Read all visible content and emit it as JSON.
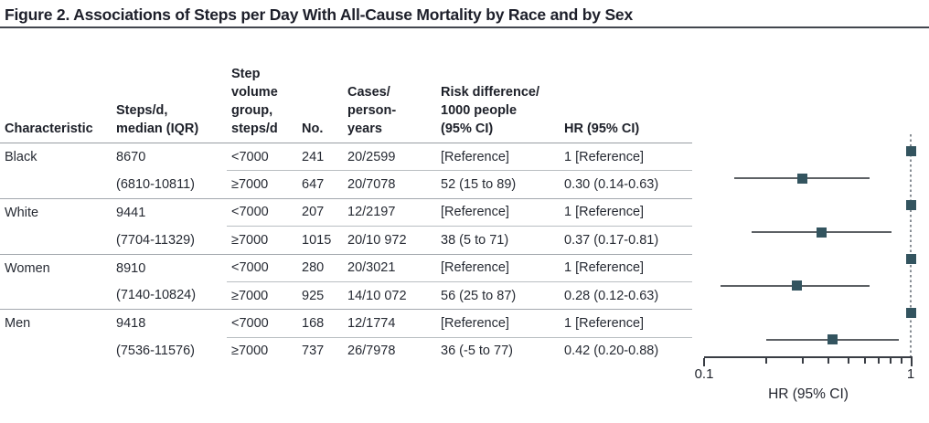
{
  "figure": {
    "title": "Figure 2. Associations of Steps per Day With All-Cause Mortality by Race and by Sex"
  },
  "table": {
    "columns": [
      {
        "id": "characteristic",
        "label": "Characteristic"
      },
      {
        "id": "steps_median",
        "label": "Steps/d,\nmedian (IQR)"
      },
      {
        "id": "volume_group",
        "label": "Step\nvolume\ngroup,\nsteps/d"
      },
      {
        "id": "no",
        "label": "No."
      },
      {
        "id": "cases",
        "label": "Cases/\nperson-\nyears"
      },
      {
        "id": "risk_difference",
        "label": "Risk difference/\n1000 people\n(95% CI)"
      },
      {
        "id": "hr",
        "label": "HR (95% CI)"
      }
    ],
    "rows": [
      {
        "characteristic": "Black",
        "steps": "8670",
        "group": "<7000",
        "no": "241",
        "cases": "20/2599",
        "risk": "[Reference]",
        "hr": "1 [Reference]"
      },
      {
        "characteristic": "",
        "steps": "(6810-10811)",
        "group": "≥7000",
        "no": "647",
        "cases": "20/7078",
        "risk": "52 (15 to 89)",
        "hr": "0.30 (0.14-0.63)"
      },
      {
        "characteristic": "White",
        "steps": "9441",
        "group": "<7000",
        "no": "207",
        "cases": "12/2197",
        "risk": "[Reference]",
        "hr": "1 [Reference]"
      },
      {
        "characteristic": "",
        "steps": "(7704-11329)",
        "group": "≥7000",
        "no": "1015",
        "cases": "20/10 972",
        "risk": "38 (5 to 71)",
        "hr": "0.37 (0.17-0.81)"
      },
      {
        "characteristic": "Women",
        "steps": "8910",
        "group": "<7000",
        "no": "280",
        "cases": "20/3021",
        "risk": "[Reference]",
        "hr": "1 [Reference]"
      },
      {
        "characteristic": "",
        "steps": "(7140-10824)",
        "group": "≥7000",
        "no": "925",
        "cases": "14/10 072",
        "risk": "56 (25 to 87)",
        "hr": "0.28 (0.12-0.63)"
      },
      {
        "characteristic": "Men",
        "steps": "9418",
        "group": "<7000",
        "no": "168",
        "cases": "12/1774",
        "risk": "[Reference]",
        "hr": "1 [Reference]"
      },
      {
        "characteristic": "",
        "steps": "(7536-11576)",
        "group": "≥7000",
        "no": "737",
        "cases": "26/7978",
        "risk": "36 (-5 to 77)",
        "hr": "0.42 (0.20-0.88)"
      }
    ]
  },
  "chart_data": {
    "type": "scatter",
    "subtype": "forest-plot",
    "xlabel": "HR (95% CI)",
    "xscale": "log",
    "xlim": [
      0.1,
      1
    ],
    "x_ticks": [
      0.1,
      0.2,
      0.3,
      0.4,
      0.5,
      0.6,
      0.7,
      0.8,
      0.9,
      1
    ],
    "x_tick_labels": [
      "0.1",
      "1"
    ],
    "reference_line_x": 1,
    "marker_color": "#33545f",
    "ci_color": "#5d6165",
    "points": [
      {
        "label": "Black <7000",
        "hr": 1.0,
        "ci_low": null,
        "ci_high": null,
        "reference": true
      },
      {
        "label": "Black ≥7000",
        "hr": 0.3,
        "ci_low": 0.14,
        "ci_high": 0.63,
        "reference": false
      },
      {
        "label": "White <7000",
        "hr": 1.0,
        "ci_low": null,
        "ci_high": null,
        "reference": true
      },
      {
        "label": "White ≥7000",
        "hr": 0.37,
        "ci_low": 0.17,
        "ci_high": 0.81,
        "reference": false
      },
      {
        "label": "Women <7000",
        "hr": 1.0,
        "ci_low": null,
        "ci_high": null,
        "reference": true
      },
      {
        "label": "Women ≥7000",
        "hr": 0.28,
        "ci_low": 0.12,
        "ci_high": 0.63,
        "reference": false
      },
      {
        "label": "Men <7000",
        "hr": 1.0,
        "ci_low": null,
        "ci_high": null,
        "reference": true
      },
      {
        "label": "Men ≥7000",
        "hr": 0.42,
        "ci_low": 0.2,
        "ci_high": 0.88,
        "reference": false
      }
    ]
  }
}
